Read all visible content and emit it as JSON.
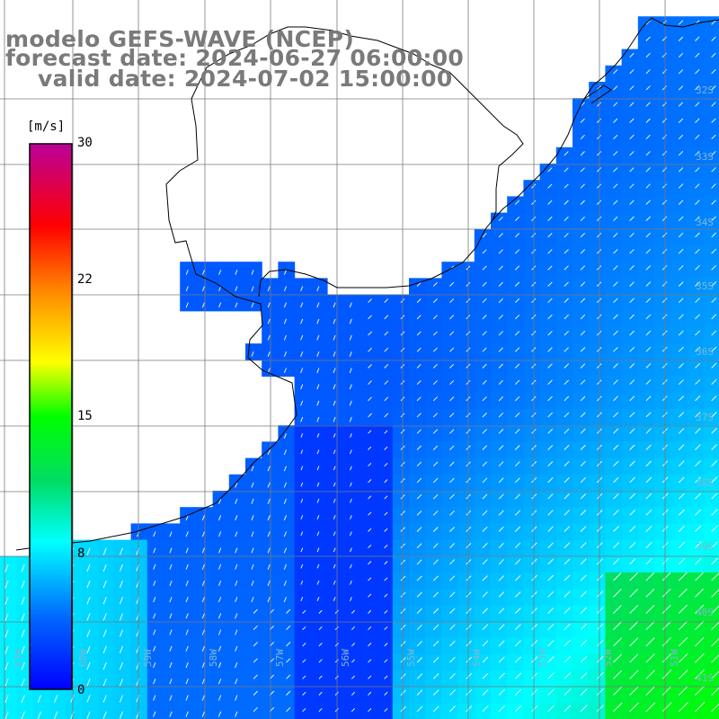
{
  "header": {
    "model": "modelo GEFS-WAVE (NCEP)",
    "forecast_date": "forecast date: 2024-06-27 06:00:00",
    "valid_date": "valid date: 2024-07-02 15:00:00"
  },
  "colorbar": {
    "unit": "[m/s]",
    "min": 0,
    "max": 30,
    "ticks": [
      "30",
      "22",
      "15",
      "8",
      "0"
    ],
    "tick_values": [
      30,
      22,
      15,
      8,
      0
    ]
  },
  "grid": {
    "lat_labels": [
      "32S",
      "33S",
      "34S",
      "35S",
      "36S",
      "37S",
      "38S",
      "39S",
      "40S",
      "41S"
    ],
    "lon_labels": [
      "61W",
      "60W",
      "59W",
      "58W",
      "57W",
      "56W",
      "55W",
      "54W",
      "53W",
      "52W",
      "51W"
    ]
  },
  "colors": {
    "land": "#ffffff",
    "gridline": "#7a7a7a",
    "coast": "#000000",
    "title": "#7a7a7a",
    "vector": "#ffffff"
  }
}
